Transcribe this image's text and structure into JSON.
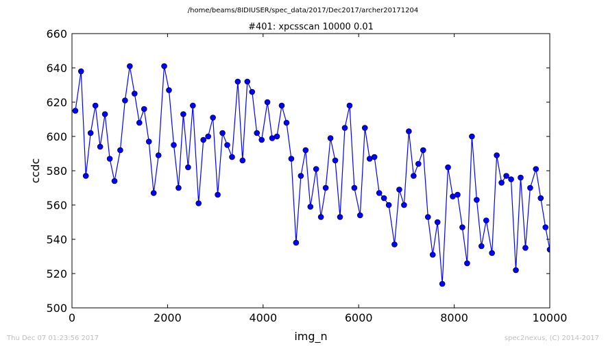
{
  "suptitle": "/home/beams/8IDIUSER/spec_data/2017/Dec2017/archer20171204",
  "footer_left": "Thu Dec 07 01:23:56 2017",
  "footer_right": "spec2nexus, (C) 2014-2017",
  "chart_data": {
    "type": "line",
    "title": "#401: xpcsscan 10000 0.01",
    "xlabel": "img_n",
    "ylabel": "ccdc",
    "xlim": [
      0,
      10000
    ],
    "ylim": [
      500,
      660
    ],
    "xticks": [
      0,
      2000,
      4000,
      6000,
      8000,
      10000
    ],
    "yticks": [
      500,
      520,
      540,
      560,
      580,
      600,
      620,
      640,
      660
    ],
    "grid": false,
    "line_color": "#0000ff",
    "marker_color": "#0000ff",
    "marker": "circle",
    "series": [
      {
        "x": [
          70,
          190,
          290,
          390,
          490,
          590,
          690,
          790,
          890,
          1010,
          1110,
          1210,
          1310,
          1410,
          1510,
          1610,
          1710,
          1810,
          1930,
          2030,
          2130,
          2230,
          2330,
          2430,
          2530,
          2650,
          2750,
          2850,
          2950,
          3050,
          3150,
          3250,
          3350,
          3470,
          3570,
          3670,
          3770,
          3870,
          3970,
          4090,
          4190,
          4290,
          4390,
          4490,
          4590,
          4690,
          4790,
          4890,
          4990,
          5110,
          5210,
          5310,
          5410,
          5510,
          5610,
          5710,
          5810,
          5910,
          6030,
          6130,
          6230,
          6330,
          6430,
          6530,
          6630,
          6750,
          6850,
          6950,
          7050,
          7150,
          7250,
          7350,
          7450,
          7550,
          7650,
          7750,
          7870,
          7970,
          8070,
          8170,
          8270,
          8370,
          8470,
          8570,
          8670,
          8790,
          8890,
          8990,
          9090,
          9190,
          9290,
          9390,
          9490,
          9590,
          9710,
          9810,
          9910,
          10000
        ],
        "y": [
          615,
          638,
          577,
          602,
          618,
          594,
          613,
          587,
          574,
          592,
          621,
          641,
          625,
          608,
          616,
          597,
          567,
          589,
          641,
          627,
          595,
          570,
          613,
          582,
          618,
          561,
          598,
          600,
          611,
          566,
          602,
          595,
          588,
          632,
          586,
          632,
          626,
          602,
          598,
          620,
          599,
          600,
          618,
          608,
          587,
          538,
          577,
          592,
          559,
          581,
          553,
          570,
          599,
          586,
          553,
          605,
          618,
          570,
          554,
          605,
          587,
          588,
          567,
          564,
          560,
          537,
          569,
          560,
          603,
          577,
          584,
          592,
          553,
          531,
          550,
          514,
          582,
          565,
          566,
          547,
          526,
          600,
          563,
          536,
          551,
          532,
          589,
          573,
          577,
          575,
          522,
          576,
          535,
          570,
          581,
          564,
          547,
          534
        ]
      }
    ]
  }
}
